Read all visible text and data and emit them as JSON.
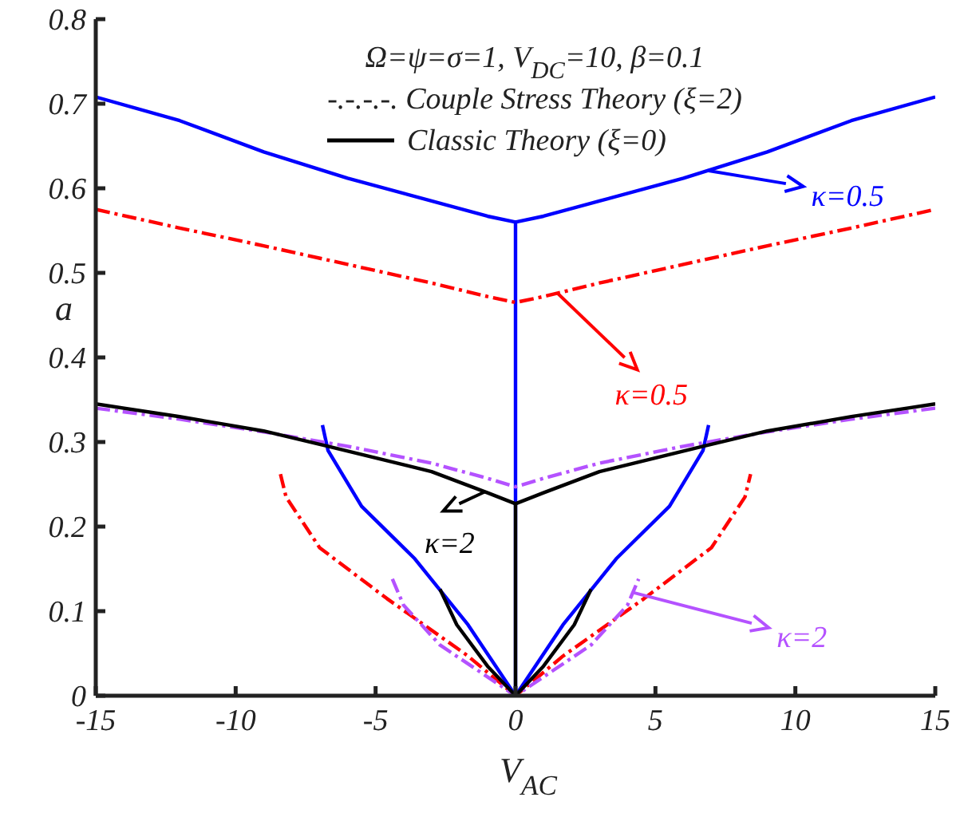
{
  "chart_data": {
    "type": "line",
    "xlabel": "V$_{AC}$",
    "ylabel": "a",
    "xlim": [
      -15,
      15
    ],
    "xticks": [
      -15,
      -10,
      -5,
      0,
      5,
      10,
      15
    ],
    "ylim": [
      0,
      0.8
    ],
    "yticks": [
      0,
      0.1,
      0.2,
      0.3,
      0.4,
      0.5,
      0.6,
      0.7,
      0.8
    ],
    "grid": false,
    "legend": "top",
    "marker": "none",
    "annotations": [
      "Ω=ψ=σ=1, V$_{DC}$=10,  β=0.1",
      "-.-.-.-. Couple Stress Theory (ξ=2)",
      {
        "text": "κ=0.5",
        "x": 6.86,
        "y": 0.621
      },
      {
        "text": "κ=0.5",
        "x": 1.5,
        "y": 0.476
      },
      {
        "text": "κ=2",
        "x": -1.1,
        "y": 0.241
      },
      {
        "text": "κ=2",
        "x": 4.2,
        "y": 0.122
      }
    ],
    "series": [
      {
        "color": "#0000ff",
        "line_style": "solid",
        "x": [
          -15,
          -12,
          -9,
          -6,
          -3,
          -1,
          0,
          1,
          3,
          6,
          9,
          12,
          15
        ],
        "values": [
          0.708,
          0.68,
          0.643,
          0.612,
          0.585,
          0.567,
          0.56,
          0.567,
          0.585,
          0.612,
          0.643,
          0.68,
          0.708
        ]
      },
      {
        "color": "#0000ff",
        "line_style": "solid",
        "x": [
          0,
          0
        ],
        "values": [
          0,
          0.56
        ]
      },
      {
        "color": "#0000ff",
        "line_style": "solid",
        "x": [
          -6.9,
          -6.7,
          -5.5,
          -3.6,
          -1.7,
          0,
          1.7,
          3.6,
          5.5,
          6.7,
          6.9
        ],
        "values": [
          0.32,
          0.29,
          0.224,
          0.162,
          0.084,
          0,
          0.084,
          0.162,
          0.224,
          0.29,
          0.32
        ]
      },
      {
        "color": "#ff0000",
        "line_style": "dashed",
        "x": [
          -15,
          -12,
          -9,
          -6,
          -3,
          -1,
          0,
          1,
          3,
          6,
          9,
          12,
          15
        ],
        "values": [
          0.575,
          0.553,
          0.532,
          0.51,
          0.488,
          0.472,
          0.465,
          0.472,
          0.488,
          0.51,
          0.532,
          0.553,
          0.575
        ]
      },
      {
        "color": "#ff0000",
        "line_style": "dashed",
        "x": [
          -8.4,
          -8.2,
          -7,
          -4.6,
          -1.7,
          0,
          1.7,
          4.6,
          7,
          8.2,
          8.4
        ],
        "values": [
          0.262,
          0.235,
          0.175,
          0.115,
          0.047,
          0,
          0.047,
          0.115,
          0.175,
          0.235,
          0.262
        ]
      },
      {
        "color": "#b452ff",
        "line_style": "dashed",
        "x": [
          -15,
          -12,
          -9,
          -6,
          -3,
          -1,
          0,
          1,
          3,
          6,
          9,
          12,
          15
        ],
        "values": [
          0.34,
          0.327,
          0.312,
          0.295,
          0.275,
          0.257,
          0.247,
          0.257,
          0.275,
          0.295,
          0.312,
          0.327,
          0.34
        ]
      },
      {
        "color": "#b452ff",
        "line_style": "dashed",
        "x": [
          -4.4,
          -4,
          -2.7,
          0,
          2.7,
          4,
          4.4
        ],
        "values": [
          0.138,
          0.107,
          0.06,
          0,
          0.06,
          0.107,
          0.138
        ]
      },
      {
        "name": "Classic Theory (ξ=0)",
        "color": "#000000",
        "line_style": "solid",
        "x": [
          -15,
          -12,
          -9,
          -6.7,
          -3,
          -1,
          0,
          1,
          3,
          6.7,
          9,
          12,
          15
        ],
        "values": [
          0.345,
          0.33,
          0.313,
          0.295,
          0.265,
          0.24,
          0.227,
          0.24,
          0.265,
          0.295,
          0.313,
          0.33,
          0.345
        ]
      },
      {
        "color": "#000000",
        "line_style": "solid",
        "x": [
          0,
          0
        ],
        "values": [
          0,
          0.227
        ]
      },
      {
        "color": "#000000",
        "line_style": "solid",
        "x": [
          -2.7,
          -2.1,
          -1,
          0,
          1,
          2.1,
          2.7
        ],
        "values": [
          0.126,
          0.084,
          0.035,
          0,
          0.035,
          0.084,
          0.126
        ]
      }
    ]
  }
}
